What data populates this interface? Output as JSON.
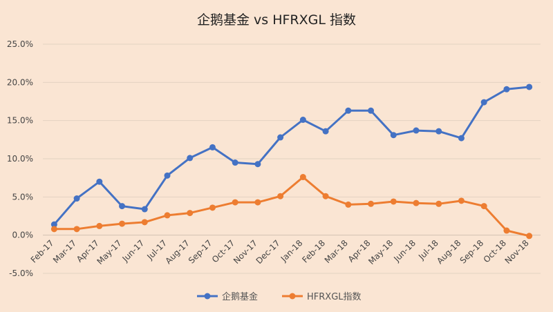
{
  "chart_data": {
    "type": "line",
    "title": "企鹅基金 vs HFRXGL 指数",
    "xlabel": "",
    "ylabel": "",
    "categories": [
      "Feb-17",
      "Mar-17",
      "Apr-17",
      "May-17",
      "Jun-17",
      "Jul-17",
      "Aug-17",
      "Sep-17",
      "Oct-17",
      "Nov-17",
      "Dec-17",
      "Jan-18",
      "Feb-18",
      "Mar-18",
      "Apr-18",
      "May-18",
      "Jun-18",
      "Jul-18",
      "Aug-18",
      "Sep-18",
      "Oct-18",
      "Nov-18"
    ],
    "ylim": [
      -5,
      25
    ],
    "y_ticks": [
      -5,
      0,
      5,
      10,
      15,
      20,
      25
    ],
    "y_tick_labels": [
      "-5.0%",
      "0.0%",
      "5.0%",
      "10.0%",
      "15.0%",
      "20.0%",
      "25.0%"
    ],
    "grid": true,
    "legend_position": "bottom",
    "series": [
      {
        "name": "企鹅基金",
        "color": "#4472c4",
        "values": [
          1.4,
          4.8,
          7.0,
          3.8,
          3.4,
          7.8,
          10.1,
          11.5,
          9.5,
          9.3,
          12.8,
          15.1,
          13.6,
          16.3,
          16.3,
          13.1,
          13.7,
          13.6,
          12.7,
          17.4,
          19.1,
          19.4
        ]
      },
      {
        "name": "HFRXGL指数",
        "color": "#ed7d31",
        "values": [
          0.8,
          0.8,
          1.2,
          1.5,
          1.7,
          2.6,
          2.9,
          3.6,
          4.3,
          4.3,
          5.1,
          7.6,
          5.1,
          4.0,
          4.1,
          4.4,
          4.2,
          4.1,
          4.5,
          3.8,
          0.6,
          -0.1
        ]
      }
    ]
  }
}
